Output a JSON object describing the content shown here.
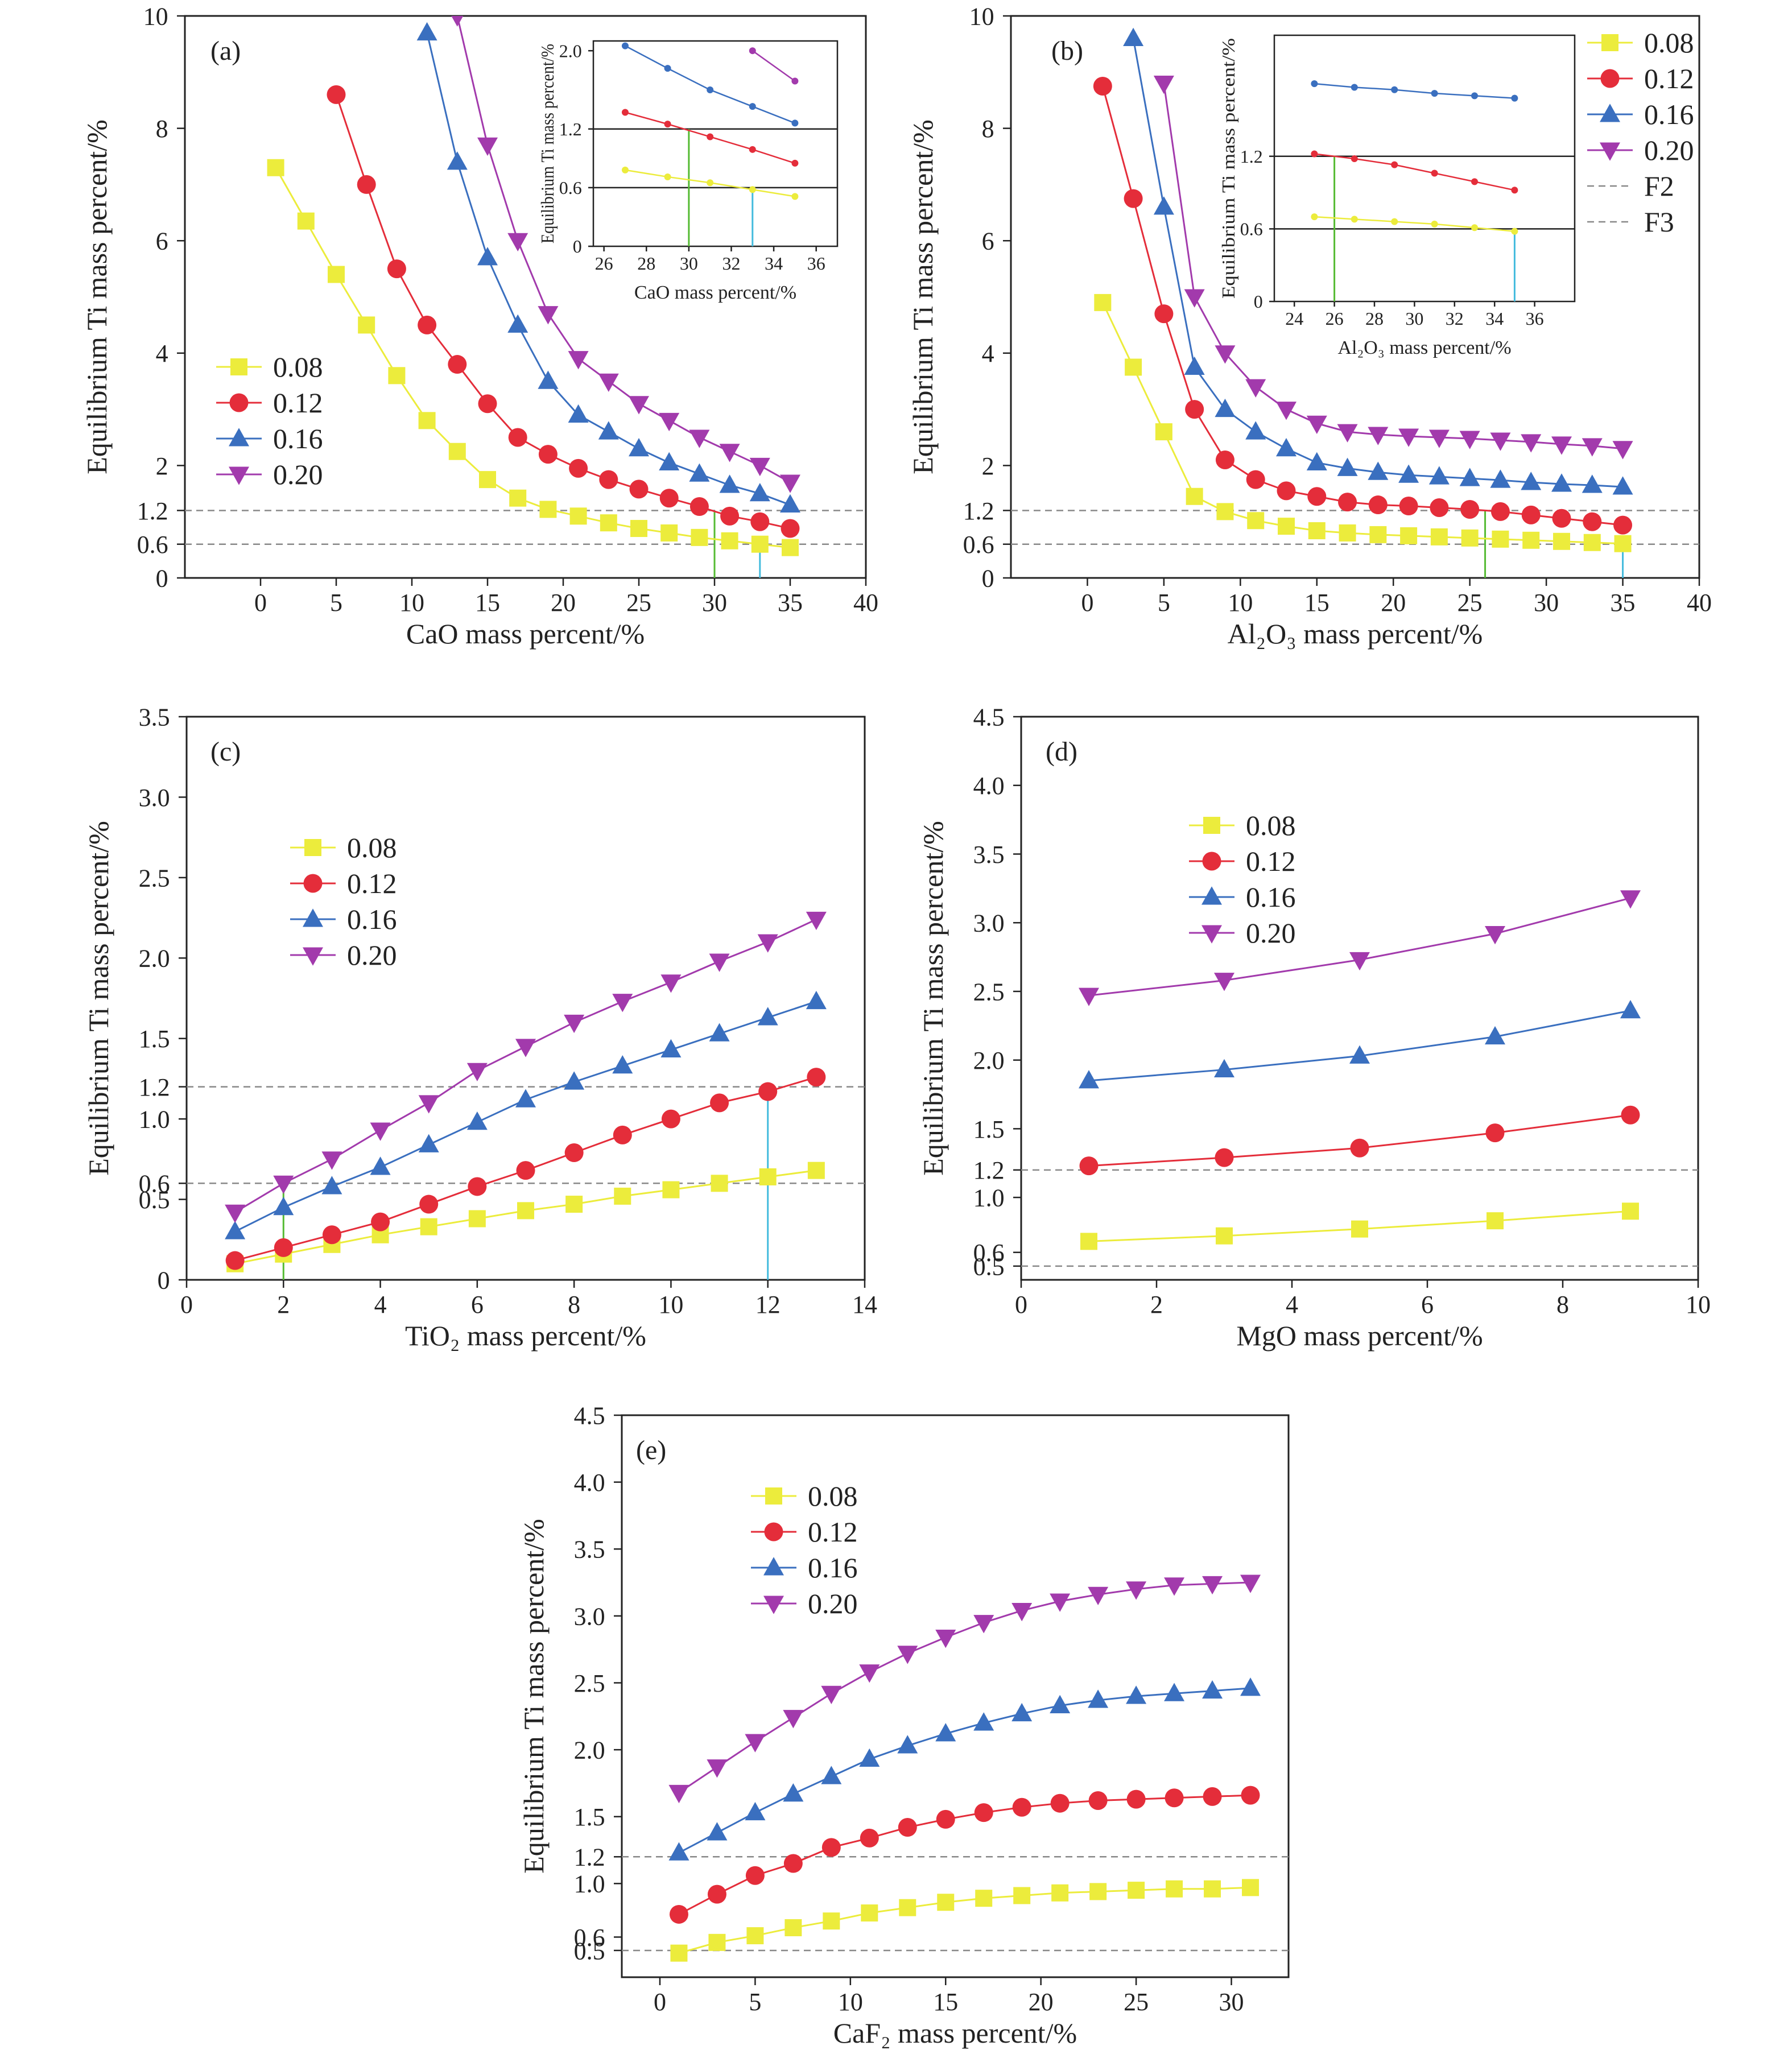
{
  "colors": {
    "series": [
      "#ecec3c",
      "#e42d3a",
      "#3a6fbf",
      "#a23aac"
    ],
    "reference_line": "#888888",
    "green_marker": "#55bb33",
    "cyan_marker": "#44bbdd"
  },
  "markers": [
    "square",
    "circle",
    "triangle-up",
    "triangle-down"
  ],
  "chart_data": [
    {
      "id": "a",
      "type": "line",
      "panel_label": "(a)",
      "xlabel": "CaO mass percent/%",
      "ylabel": "Equilibrium Ti mass percent/%",
      "xlim": [
        -5,
        40
      ],
      "ylim": [
        0,
        10
      ],
      "xticks": [
        "0",
        "5",
        "10",
        "15",
        "20",
        "25",
        "30",
        "35",
        "40"
      ],
      "yticks": [
        "0",
        "0.6",
        "1.2",
        "2",
        "4",
        "6",
        "8",
        "10"
      ],
      "x": [
        1,
        3,
        5,
        7,
        9,
        11,
        13,
        15,
        17,
        19,
        21,
        23,
        25,
        27,
        29,
        31,
        33,
        35
      ],
      "series": [
        {
          "name": "0.08",
          "values": [
            7.3,
            6.35,
            5.4,
            4.5,
            3.6,
            2.8,
            2.25,
            1.75,
            1.42,
            1.22,
            1.1,
            0.98,
            0.88,
            0.8,
            0.72,
            0.66,
            0.6,
            0.54
          ]
        },
        {
          "name": "0.12",
          "values": [
            null,
            null,
            8.6,
            7.0,
            5.5,
            4.5,
            3.8,
            3.1,
            2.5,
            2.2,
            1.95,
            1.75,
            1.58,
            1.42,
            1.27,
            1.1,
            1.0,
            0.88
          ]
        },
        {
          "name": "0.16",
          "values": [
            null,
            null,
            null,
            null,
            null,
            9.7,
            7.4,
            5.7,
            4.5,
            3.5,
            2.9,
            2.6,
            2.3,
            2.05,
            1.85,
            1.65,
            1.5,
            1.3
          ]
        },
        {
          "name": "0.20",
          "values": [
            null,
            null,
            null,
            null,
            null,
            null,
            10.0,
            7.7,
            6.0,
            4.7,
            3.9,
            3.5,
            3.1,
            2.8,
            2.5,
            2.25,
            2.0,
            1.7
          ]
        }
      ],
      "reference_lines": [
        1.2,
        0.6
      ],
      "marker_lines": [
        {
          "x": 30,
          "y": 1.2,
          "color": "green"
        },
        {
          "x": 33,
          "y": 0.6,
          "color": "cyan"
        }
      ],
      "legend": [
        "0.08",
        "0.12",
        "0.16",
        "0.20"
      ],
      "legend_position": "lower-left",
      "inset": {
        "xlabel": "CaO mass percent/%",
        "ylabel": "Equilibrium Ti mass percent/%",
        "xlim": [
          25.5,
          37
        ],
        "ylim": [
          0,
          2.1
        ],
        "xticks": [
          "26",
          "28",
          "30",
          "32",
          "34",
          "36"
        ],
        "yticks": [
          "0",
          "0.6",
          "1.2",
          "2.0"
        ],
        "x": [
          27,
          29,
          31,
          33,
          35
        ],
        "series": [
          {
            "name": "0.08",
            "values": [
              0.78,
              0.71,
              0.65,
              0.58,
              0.51
            ]
          },
          {
            "name": "0.12",
            "values": [
              1.37,
              1.25,
              1.12,
              0.99,
              0.85
            ]
          },
          {
            "name": "0.16",
            "values": [
              2.05,
              1.82,
              1.6,
              1.43,
              1.26
            ]
          },
          {
            "name": "0.20",
            "values": [
              null,
              null,
              null,
              2.0,
              1.69
            ]
          }
        ],
        "reference_lines": [
          1.2,
          0.6
        ],
        "marker_lines": [
          {
            "x": 30,
            "y": 1.2,
            "color": "green"
          },
          {
            "x": 33,
            "y": 0.6,
            "color": "cyan"
          }
        ]
      }
    },
    {
      "id": "b",
      "type": "line",
      "panel_label": "(b)",
      "xlabel": "Al₂O₃ mass percent/%",
      "ylabel": "Equilibrium Ti mass percent/%",
      "xlim": [
        -5,
        40
      ],
      "ylim": [
        0,
        10
      ],
      "xticks": [
        "0",
        "5",
        "10",
        "15",
        "20",
        "25",
        "30",
        "35",
        "40"
      ],
      "yticks": [
        "0",
        "0.6",
        "1.2",
        "2",
        "4",
        "6",
        "8",
        "10"
      ],
      "x": [
        1,
        3,
        5,
        7,
        9,
        11,
        13,
        15,
        17,
        19,
        21,
        23,
        25,
        27,
        29,
        31,
        33,
        35
      ],
      "series": [
        {
          "name": "0.08",
          "values": [
            4.9,
            3.75,
            2.6,
            1.45,
            1.18,
            1.02,
            0.92,
            0.84,
            0.8,
            0.77,
            0.75,
            0.73,
            0.71,
            0.69,
            0.67,
            0.65,
            0.63,
            0.61
          ]
        },
        {
          "name": "0.12",
          "values": [
            8.75,
            6.75,
            4.7,
            3.0,
            2.1,
            1.75,
            1.55,
            1.45,
            1.35,
            1.3,
            1.28,
            1.25,
            1.22,
            1.18,
            1.12,
            1.06,
            1.0,
            0.94
          ]
        },
        {
          "name": "0.16",
          "values": [
            null,
            9.6,
            6.6,
            3.75,
            3.0,
            2.6,
            2.3,
            2.05,
            1.95,
            1.88,
            1.83,
            1.8,
            1.77,
            1.74,
            1.7,
            1.67,
            1.65,
            1.62
          ]
        },
        {
          "name": "0.20",
          "values": [
            null,
            null,
            8.8,
            5.0,
            4.0,
            3.4,
            3.0,
            2.75,
            2.6,
            2.55,
            2.52,
            2.5,
            2.48,
            2.45,
            2.42,
            2.38,
            2.35,
            2.3
          ]
        }
      ],
      "reference_lines": [
        1.2,
        0.6
      ],
      "marker_lines": [
        {
          "x": 26,
          "y": 1.2,
          "color": "green"
        },
        {
          "x": 35,
          "y": 0.6,
          "color": "cyan"
        }
      ],
      "legend": [
        "0.08",
        "0.12",
        "0.16",
        "0.20",
        "F2",
        "F3"
      ],
      "legend_position": "right outside",
      "inset": {
        "xlabel": "Al₂O₃ mass percent/%",
        "ylabel": "Equilibrium Ti mass percent/%",
        "xlim": [
          23,
          38
        ],
        "ylim": [
          0,
          2.2
        ],
        "xticks": [
          "24",
          "26",
          "28",
          "30",
          "32",
          "34",
          "36"
        ],
        "yticks": [
          "0",
          "0.6",
          "1.2"
        ],
        "x": [
          25,
          27,
          29,
          31,
          33,
          35
        ],
        "series": [
          {
            "name": "0.08",
            "values": [
              0.7,
              0.68,
              0.66,
              0.64,
              0.61,
              0.58
            ]
          },
          {
            "name": "0.12",
            "values": [
              1.22,
              1.18,
              1.13,
              1.06,
              0.99,
              0.92
            ]
          },
          {
            "name": "0.16",
            "values": [
              1.8,
              1.77,
              1.75,
              1.72,
              1.7,
              1.68
            ]
          }
        ],
        "reference_lines": [
          1.2,
          0.6
        ],
        "marker_lines": [
          {
            "x": 26,
            "y": 1.2,
            "color": "green"
          },
          {
            "x": 35,
            "y": 0.6,
            "color": "cyan"
          }
        ]
      }
    },
    {
      "id": "c",
      "type": "line",
      "panel_label": "(c)",
      "xlabel": "TiO₂ mass percent/%",
      "ylabel": "Equilibrium Ti mass percent/%",
      "xlim": [
        0,
        14
      ],
      "ylim": [
        0,
        3.5
      ],
      "xticks": [
        "0",
        "2",
        "4",
        "6",
        "8",
        "10",
        "12",
        "14"
      ],
      "yticks": [
        "0",
        "0.5",
        "0.6",
        "1.0",
        "1.2",
        "1.5",
        "2.0",
        "2.5",
        "3.0",
        "3.5"
      ],
      "x": [
        1,
        2,
        3,
        4,
        5,
        6,
        7,
        8,
        9,
        10,
        11,
        12,
        13
      ],
      "series": [
        {
          "name": "0.08",
          "values": [
            0.1,
            0.16,
            0.22,
            0.28,
            0.33,
            0.38,
            0.43,
            0.47,
            0.52,
            0.56,
            0.6,
            0.64,
            0.68
          ]
        },
        {
          "name": "0.12",
          "values": [
            0.12,
            0.2,
            0.28,
            0.36,
            0.47,
            0.58,
            0.68,
            0.79,
            0.9,
            1.0,
            1.1,
            1.17,
            1.26
          ]
        },
        {
          "name": "0.16",
          "values": [
            0.3,
            0.45,
            0.58,
            0.7,
            0.84,
            0.98,
            1.12,
            1.23,
            1.33,
            1.43,
            1.53,
            1.63,
            1.73
          ]
        },
        {
          "name": "0.20",
          "values": [
            0.42,
            0.6,
            0.75,
            0.93,
            1.1,
            1.3,
            1.45,
            1.6,
            1.73,
            1.85,
            1.98,
            2.1,
            2.24
          ]
        }
      ],
      "reference_lines": [
        1.2,
        0.6
      ],
      "marker_lines": [
        {
          "x": 2,
          "y": 0.6,
          "color": "green"
        },
        {
          "x": 12,
          "y": 1.2,
          "color": "cyan"
        }
      ],
      "legend": [
        "0.08",
        "0.12",
        "0.16",
        "0.20"
      ],
      "legend_position": "upper-left"
    },
    {
      "id": "d",
      "type": "line",
      "panel_label": "(d)",
      "xlabel": "MgO mass percent/%",
      "ylabel": "Equilibrium Ti mass percent/%",
      "xlim": [
        0,
        10
      ],
      "ylim": [
        0.4,
        4.5
      ],
      "xticks": [
        "0",
        "2",
        "4",
        "6",
        "8",
        "10"
      ],
      "yticks": [
        "0.5",
        "0.6",
        "1.0",
        "1.2",
        "1.5",
        "2.0",
        "2.5",
        "3.0",
        "3.5",
        "4.0",
        "4.5"
      ],
      "x": [
        1,
        3,
        5,
        7,
        9
      ],
      "series": [
        {
          "name": "0.08",
          "values": [
            0.68,
            0.72,
            0.77,
            0.83,
            0.9
          ]
        },
        {
          "name": "0.12",
          "values": [
            1.23,
            1.29,
            1.36,
            1.47,
            1.6
          ]
        },
        {
          "name": "0.16",
          "values": [
            1.85,
            1.93,
            2.03,
            2.17,
            2.36
          ]
        },
        {
          "name": "0.20",
          "values": [
            2.47,
            2.58,
            2.73,
            2.92,
            3.18
          ]
        }
      ],
      "reference_lines": [
        1.2,
        0.5
      ],
      "legend": [
        "0.08",
        "0.12",
        "0.16",
        "0.20"
      ],
      "legend_position": "upper-left"
    },
    {
      "id": "e",
      "type": "line",
      "panel_label": "(e)",
      "xlabel": "CaF₂ mass percent/%",
      "ylabel": "Equilibrium Ti mass percent/%",
      "xlim": [
        -2,
        33
      ],
      "ylim": [
        0.3,
        4.5
      ],
      "xticks": [
        "0",
        "5",
        "10",
        "15",
        "20",
        "25",
        "30"
      ],
      "yticks": [
        "0.5",
        "0.6",
        "1.0",
        "1.2",
        "1.5",
        "2.0",
        "2.5",
        "3.0",
        "3.5",
        "4.0",
        "4.5"
      ],
      "x": [
        1,
        3,
        5,
        7,
        9,
        11,
        13,
        15,
        17,
        19,
        21,
        23,
        25,
        27,
        29,
        31
      ],
      "series": [
        {
          "name": "0.08",
          "values": [
            0.48,
            0.56,
            0.61,
            0.67,
            0.72,
            0.78,
            0.82,
            0.86,
            0.89,
            0.91,
            0.93,
            0.94,
            0.95,
            0.96,
            0.96,
            0.97
          ]
        },
        {
          "name": "0.12",
          "values": [
            0.77,
            0.92,
            1.06,
            1.15,
            1.27,
            1.34,
            1.42,
            1.48,
            1.53,
            1.57,
            1.6,
            1.62,
            1.63,
            1.64,
            1.65,
            1.66
          ]
        },
        {
          "name": "0.16",
          "values": [
            1.23,
            1.38,
            1.53,
            1.67,
            1.8,
            1.93,
            2.03,
            2.12,
            2.2,
            2.27,
            2.33,
            2.37,
            2.4,
            2.42,
            2.44,
            2.46
          ]
        },
        {
          "name": "0.20",
          "values": [
            1.68,
            1.87,
            2.06,
            2.24,
            2.42,
            2.58,
            2.72,
            2.84,
            2.95,
            3.04,
            3.11,
            3.16,
            3.2,
            3.23,
            3.24,
            3.25
          ]
        }
      ],
      "reference_lines": [
        1.2,
        0.5
      ],
      "legend": [
        "0.08",
        "0.12",
        "0.16",
        "0.20"
      ],
      "legend_position": "upper-left"
    }
  ]
}
